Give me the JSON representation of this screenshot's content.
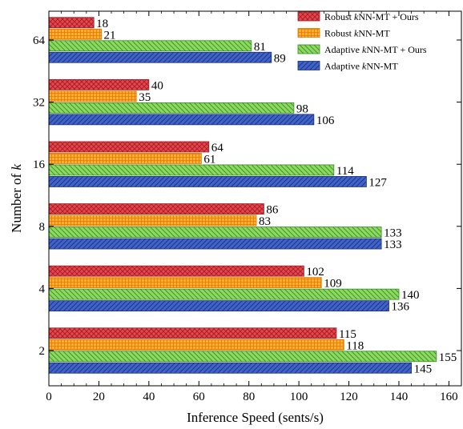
{
  "chart_data": {
    "type": "bar",
    "orientation": "horizontal",
    "xlabel": "Inference Speed (sents/s)",
    "ylabel_prefix": "Number of ",
    "ylabel_var": "k",
    "xlim": [
      0,
      165
    ],
    "xticks": [
      0,
      20,
      40,
      60,
      80,
      100,
      120,
      140,
      160
    ],
    "categories": [
      "2",
      "4",
      "8",
      "16",
      "32",
      "64"
    ],
    "legend_position": "top-right",
    "series": [
      {
        "name_pre": "Robust ",
        "name_var": "k",
        "name_post": "NN-MT + Ours",
        "color": "#e8464e",
        "edge": "#a11d22",
        "hatch": "cross",
        "values": [
          115,
          102,
          86,
          64,
          40,
          18
        ]
      },
      {
        "name_pre": "Robust ",
        "name_var": "k",
        "name_post": "NN-MT",
        "color": "#ffad33",
        "edge": "#e07a00",
        "hatch": "grid",
        "values": [
          118,
          109,
          83,
          61,
          35,
          21
        ]
      },
      {
        "name_pre": "Adaptive ",
        "name_var": "k",
        "name_post": "NN-MT + Ours",
        "color": "#8cd95f",
        "edge": "#3a8a2a",
        "hatch": "back",
        "values": [
          155,
          140,
          133,
          114,
          98,
          81
        ]
      },
      {
        "name_pre": "Adaptive ",
        "name_var": "k",
        "name_post": "NN-MT",
        "color": "#3f63c9",
        "edge": "#1c2f7a",
        "hatch": "fwd",
        "values": [
          145,
          136,
          133,
          127,
          106,
          89
        ]
      }
    ]
  }
}
